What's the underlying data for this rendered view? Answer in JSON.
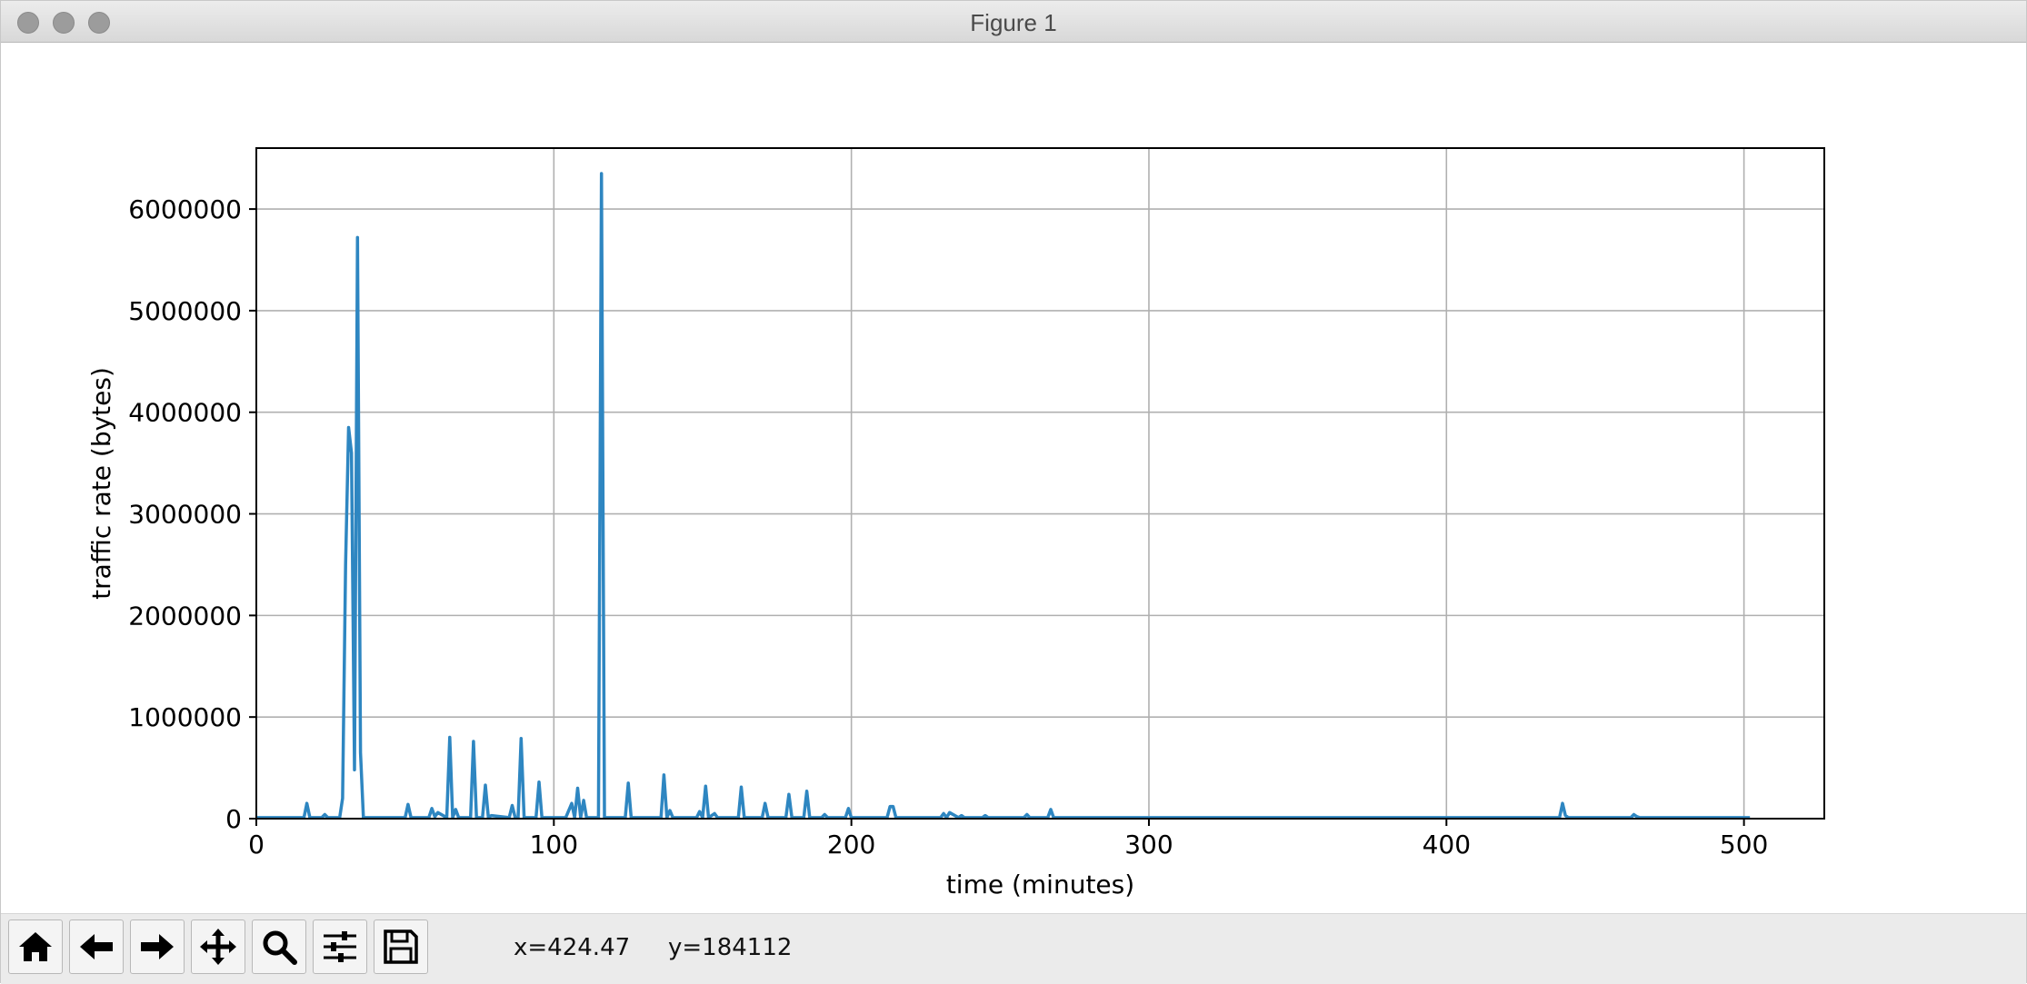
{
  "window": {
    "title": "Figure 1"
  },
  "toolbar": {
    "buttons": [
      {
        "name": "home",
        "icon": "home-icon"
      },
      {
        "name": "back",
        "icon": "arrow-left-icon"
      },
      {
        "name": "forward",
        "icon": "arrow-right-icon"
      },
      {
        "name": "pan",
        "icon": "move-icon"
      },
      {
        "name": "zoom",
        "icon": "search-icon"
      },
      {
        "name": "configure-subplots",
        "icon": "sliders-icon"
      },
      {
        "name": "save",
        "icon": "save-icon"
      }
    ],
    "x_readout": "x=424.47",
    "y_readout": "y=184112"
  },
  "chart_data": {
    "type": "line",
    "title": "",
    "xlabel": "time (minutes)",
    "ylabel": "traffic rate (bytes)",
    "xlim": [
      0,
      527
    ],
    "ylim": [
      0,
      6600000
    ],
    "xticks": [
      0,
      100,
      200,
      300,
      400,
      500
    ],
    "yticks": [
      0,
      1000000,
      2000000,
      3000000,
      4000000,
      5000000,
      6000000
    ],
    "xtick_labels": [
      "0",
      "100",
      "200",
      "300",
      "400",
      "500"
    ],
    "ytick_labels": [
      "0",
      "1000000",
      "2000000",
      "3000000",
      "4000000",
      "5000000",
      "6000000"
    ],
    "grid": true,
    "line_color": "#2e86c1",
    "series": [
      {
        "x": [
          0,
          16,
          17,
          18,
          22,
          23,
          24,
          28,
          29,
          30,
          31,
          32,
          33,
          34,
          35,
          36,
          37,
          50,
          51,
          52,
          58,
          59,
          60,
          61,
          64,
          65,
          66,
          67,
          68,
          72,
          73,
          74,
          76,
          77,
          78,
          79,
          85,
          86,
          87,
          88,
          89,
          90,
          94,
          95,
          96,
          104,
          105,
          106,
          107,
          108,
          109,
          110,
          111,
          114,
          115,
          116,
          117,
          124,
          125,
          126,
          136,
          137,
          138,
          139,
          140,
          148,
          149,
          150,
          151,
          152,
          154,
          155,
          162,
          163,
          164,
          170,
          171,
          172,
          178,
          179,
          180,
          184,
          185,
          186,
          190,
          191,
          192,
          198,
          199,
          200,
          212,
          213,
          214,
          215,
          216,
          230,
          231,
          232,
          233,
          236,
          237,
          238,
          244,
          245,
          246,
          258,
          259,
          260,
          266,
          267,
          268,
          300,
          400,
          438,
          439,
          440,
          441,
          442,
          444,
          462,
          463,
          464,
          465,
          500,
          502
        ],
        "y": [
          10000,
          10000,
          150000,
          10000,
          10000,
          40000,
          10000,
          10000,
          200000,
          2500000,
          3850000,
          3600000,
          480000,
          5720000,
          650000,
          10000,
          10000,
          10000,
          140000,
          10000,
          10000,
          100000,
          20000,
          60000,
          10000,
          800000,
          10000,
          90000,
          10000,
          10000,
          760000,
          10000,
          10000,
          330000,
          10000,
          30000,
          10000,
          130000,
          10000,
          10000,
          790000,
          10000,
          10000,
          360000,
          10000,
          10000,
          80000,
          150000,
          10000,
          300000,
          10000,
          180000,
          10000,
          10000,
          10000,
          6350000,
          10000,
          10000,
          350000,
          10000,
          10000,
          430000,
          10000,
          80000,
          10000,
          10000,
          70000,
          10000,
          320000,
          10000,
          50000,
          10000,
          10000,
          310000,
          10000,
          10000,
          150000,
          10000,
          10000,
          240000,
          10000,
          10000,
          270000,
          10000,
          10000,
          40000,
          10000,
          10000,
          100000,
          10000,
          10000,
          120000,
          120000,
          10000,
          10000,
          10000,
          50000,
          10000,
          60000,
          10000,
          30000,
          10000,
          10000,
          30000,
          10000,
          10000,
          40000,
          10000,
          10000,
          90000,
          10000,
          10000,
          10000,
          10000,
          150000,
          30000,
          10000,
          10000,
          10000,
          10000,
          40000,
          20000,
          10000,
          10000,
          10000
        ]
      }
    ]
  }
}
